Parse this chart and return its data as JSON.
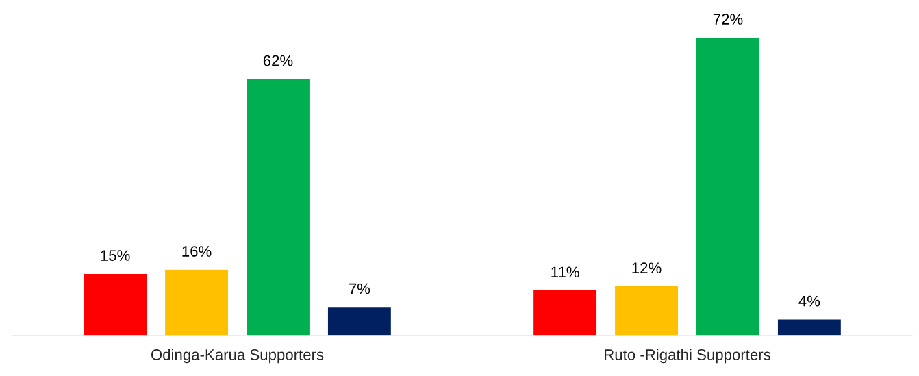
{
  "chart_data": {
    "type": "bar",
    "categories": [
      "Odinga-Karua Supporters",
      "Ruto -Rigathi Supporters"
    ],
    "series": [
      {
        "color": "#ff0000",
        "values": [
          15,
          11
        ],
        "value_labels": [
          "15%",
          "11%"
        ]
      },
      {
        "color": "#ffc000",
        "values": [
          16,
          12
        ],
        "value_labels": [
          "16%",
          "12%"
        ]
      },
      {
        "color": "#00b050",
        "values": [
          62,
          72
        ],
        "value_labels": [
          "62%",
          "72%"
        ]
      },
      {
        "color": "#002060",
        "values": [
          7,
          4
        ],
        "value_labels": [
          "7%",
          "4%"
        ]
      }
    ],
    "grid": false,
    "legend": false
  }
}
